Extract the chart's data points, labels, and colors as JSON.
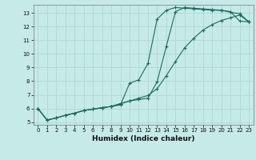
{
  "title": "",
  "xlabel": "Humidex (Indice chaleur)",
  "bg_color": "#c5eae8",
  "grid_color": "#b0d8d5",
  "line_color": "#1a6b5e",
  "xlim": [
    -0.5,
    23.5
  ],
  "ylim": [
    4.8,
    13.6
  ],
  "xticks": [
    0,
    1,
    2,
    3,
    4,
    5,
    6,
    7,
    8,
    9,
    10,
    11,
    12,
    13,
    14,
    15,
    16,
    17,
    18,
    19,
    20,
    21,
    22,
    23
  ],
  "yticks": [
    5,
    6,
    7,
    8,
    9,
    10,
    11,
    12,
    13
  ],
  "line1_x": [
    0,
    1,
    2,
    3,
    4,
    5,
    6,
    7,
    8,
    9,
    10,
    11,
    12,
    13,
    14,
    15,
    16,
    17,
    18,
    19,
    20,
    21,
    22,
    23
  ],
  "line1_y": [
    6.0,
    5.15,
    5.3,
    5.5,
    5.65,
    5.85,
    5.95,
    6.05,
    6.15,
    6.25,
    7.85,
    8.1,
    9.3,
    12.55,
    13.2,
    13.4,
    13.35,
    13.3,
    13.25,
    13.2,
    13.2,
    13.05,
    12.95,
    12.35
  ],
  "line2_x": [
    0,
    1,
    2,
    3,
    4,
    5,
    6,
    7,
    8,
    9,
    10,
    11,
    12,
    13,
    14,
    15,
    16,
    17,
    18,
    19,
    20,
    21,
    22,
    23
  ],
  "line2_y": [
    6.0,
    5.15,
    5.3,
    5.5,
    5.65,
    5.85,
    5.95,
    6.05,
    6.15,
    6.35,
    6.55,
    6.65,
    6.75,
    7.95,
    10.55,
    13.1,
    13.4,
    13.35,
    13.3,
    13.25,
    13.2,
    13.1,
    12.4,
    12.35
  ],
  "line3_x": [
    0,
    1,
    2,
    3,
    4,
    5,
    6,
    7,
    8,
    9,
    10,
    11,
    12,
    13,
    14,
    15,
    16,
    17,
    18,
    19,
    20,
    21,
    22,
    23
  ],
  "line3_y": [
    6.0,
    5.15,
    5.3,
    5.5,
    5.65,
    5.85,
    5.95,
    6.05,
    6.15,
    6.35,
    6.55,
    6.75,
    6.95,
    7.45,
    8.4,
    9.45,
    10.45,
    11.15,
    11.75,
    12.15,
    12.45,
    12.65,
    12.85,
    12.35
  ],
  "xlabel_fontsize": 6.5,
  "tick_fontsize": 5.0
}
